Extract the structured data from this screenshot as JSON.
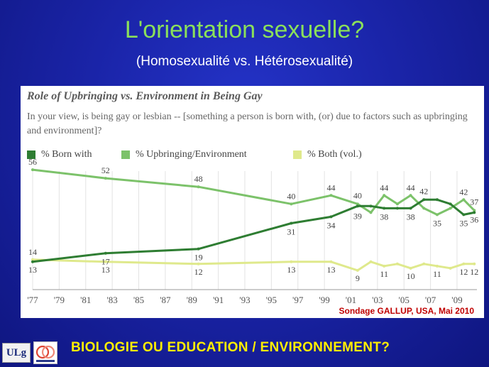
{
  "slide": {
    "title": "L'orientation sexuelle?",
    "subtitle": "(Homosexualité  vs.  Hétérosexualité)",
    "footer": "BIOLOGIE   OU EDUCATION / ENVIRONNEMENT?",
    "source": "Sondage GALLUP,  USA, Mai 2010",
    "logo_left": "ULg",
    "logo_right_icon": "giga-logo-icon"
  },
  "chart_data": {
    "type": "line",
    "title": "Role of Upbringing vs. Environment in Being Gay",
    "question": "In your view, is being gay or lesbian -- [something a person is born with, (or) due to factors such as upbringing and environment]?",
    "x_tick_labels": [
      "'77",
      "'79",
      "'81",
      "'83",
      "'85",
      "'87",
      "'89",
      "'91",
      "'93",
      "'95",
      "'97",
      "'99",
      "'01",
      "'03",
      "'05",
      "'07",
      "'09"
    ],
    "xlim": [
      1977,
      2010.5
    ],
    "ylim": [
      0,
      60
    ],
    "grid": "vertical",
    "legend_position": "top",
    "series": [
      {
        "name": "% Born with",
        "color": "#2e7d32",
        "x": [
          1977,
          1982.5,
          1989.5,
          1996.5,
          1999.5,
          2001.5,
          2002.5,
          2003.5,
          2004.5,
          2005.5,
          2006.5,
          2007.5,
          2008.5,
          2009.5,
          2010.3
        ],
        "values": [
          13,
          17,
          19,
          31,
          34,
          39,
          39,
          38,
          38,
          38,
          42,
          42,
          40,
          35,
          36
        ],
        "labels": [
          "13",
          "17",
          "19",
          "31",
          "34",
          "39",
          "",
          "38",
          "",
          "38",
          "42",
          "",
          "",
          "35",
          "36"
        ]
      },
      {
        "name": "% Upbringing/Environment",
        "color": "#7cc26a",
        "x": [
          1977,
          1982.5,
          1989.5,
          1996.5,
          1999.5,
          2001.5,
          2002.5,
          2003.5,
          2004.5,
          2005.5,
          2006.5,
          2007.5,
          2008.5,
          2009.5,
          2010.3
        ],
        "values": [
          56,
          52,
          48,
          40,
          44,
          40,
          36,
          44,
          40,
          44,
          38,
          35,
          38,
          42,
          37
        ],
        "labels": [
          "56",
          "52",
          "48",
          "40",
          "44",
          "40",
          "",
          "44",
          "",
          "44",
          "",
          "35",
          "",
          "42",
          "37"
        ]
      },
      {
        "name": "% Both (vol.)",
        "color": "#dfe98c",
        "x": [
          1977,
          1982.5,
          1989.5,
          1996.5,
          1999.5,
          2001.5,
          2002.5,
          2003.5,
          2004.5,
          2005.5,
          2006.5,
          2007.5,
          2008.5,
          2009.5,
          2010.3
        ],
        "values": [
          14,
          13,
          12,
          13,
          13,
          9,
          13,
          11,
          12,
          10,
          12,
          11,
          10,
          12,
          12
        ],
        "labels": [
          "14",
          "13",
          "12",
          "13",
          "13",
          "9",
          "",
          "11",
          "",
          "10",
          "",
          "11",
          "",
          "12",
          "12"
        ]
      }
    ]
  }
}
